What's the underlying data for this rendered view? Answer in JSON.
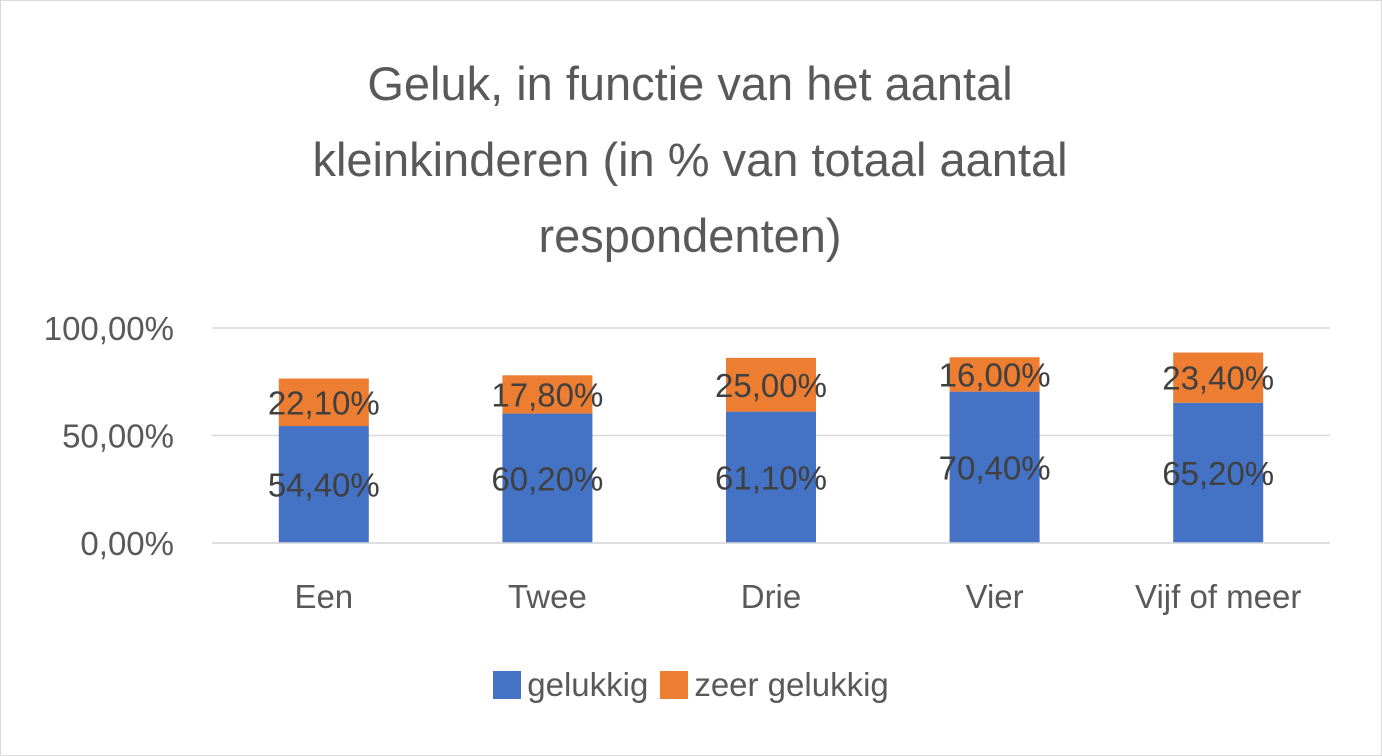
{
  "chart_data": {
    "type": "bar",
    "stacked": true,
    "title": "Geluk, in functie van het aantal kleinkinderen (in % van totaal aantal respondenten)",
    "title_lines": [
      "Geluk, in functie van het aantal",
      "kleinkinderen (in % van totaal aantal",
      "respondenten)"
    ],
    "categories": [
      "Een",
      "Twee",
      "Drie",
      "Vier",
      "Vijf of meer"
    ],
    "series": [
      {
        "name": "gelukkig",
        "color": "#4472C4",
        "values": [
          54.4,
          60.2,
          61.1,
          70.4,
          65.2
        ],
        "labels": [
          "54,40%",
          "60,20%",
          "61,10%",
          "70,40%",
          "65,20%"
        ]
      },
      {
        "name": "zeer gelukkig",
        "color": "#ED7D31",
        "values": [
          22.1,
          17.8,
          25.0,
          16.0,
          23.4
        ],
        "labels": [
          "22,10%",
          "17,80%",
          "25,00%",
          "16,00%",
          "23,40%"
        ]
      }
    ],
    "ylim": [
      0,
      100
    ],
    "yticks": [
      0,
      50,
      100
    ],
    "ytick_labels": [
      "0,00%",
      "50,00%",
      "100,00%"
    ],
    "grid": true,
    "legend_position": "bottom"
  }
}
